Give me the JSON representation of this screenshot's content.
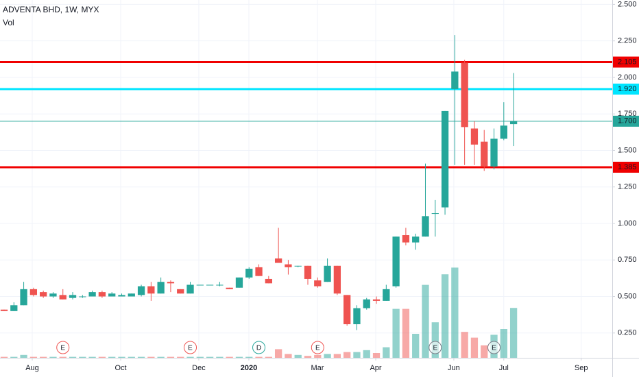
{
  "chart_data": {
    "type": "candlestick",
    "title": "ADVENTA BHD, 1W, MYX",
    "subtitle": "Vol",
    "up_color": "#26a69a",
    "down_color": "#ef5350",
    "open": [
      0.41,
      0.4,
      0.44,
      0.55,
      0.53,
      0.5,
      0.51,
      0.49,
      0.5,
      0.5,
      0.53,
      0.5,
      0.5,
      0.5,
      0.51,
      0.57,
      0.52,
      0.6,
      0.55,
      0.52,
      0.58,
      0.58,
      0.58,
      0.56,
      0.56,
      0.63,
      0.7,
      0.62,
      0.76,
      0.72,
      0.71,
      0.71,
      0.61,
      0.6,
      0.71,
      0.51,
      0.31,
      0.42,
      0.48,
      0.47,
      0.57,
      0.92,
      0.87,
      0.91,
      1.07,
      1.11,
      1.92,
      2.1,
      1.65,
      1.56,
      1.39,
      1.58,
      1.68
    ],
    "high": [
      0.41,
      0.46,
      0.6,
      0.56,
      0.54,
      0.53,
      0.55,
      0.53,
      0.51,
      0.54,
      0.54,
      0.53,
      0.52,
      0.52,
      0.58,
      0.6,
      0.63,
      0.61,
      0.55,
      0.6,
      0.58,
      0.58,
      0.6,
      0.56,
      0.63,
      0.7,
      0.72,
      0.64,
      0.97,
      0.75,
      0.71,
      0.71,
      0.63,
      0.76,
      0.71,
      0.51,
      0.44,
      0.49,
      0.5,
      0.58,
      0.91,
      0.97,
      0.93,
      1.41,
      1.16,
      1.77,
      2.29,
      2.12,
      1.7,
      1.64,
      1.65,
      1.83,
      2.03
    ],
    "low": [
      0.4,
      0.4,
      0.44,
      0.5,
      0.49,
      0.49,
      0.48,
      0.48,
      0.49,
      0.5,
      0.49,
      0.5,
      0.5,
      0.5,
      0.5,
      0.47,
      0.52,
      0.53,
      0.52,
      0.52,
      0.58,
      0.58,
      0.57,
      0.55,
      0.56,
      0.62,
      0.64,
      0.59,
      0.73,
      0.65,
      0.7,
      0.58,
      0.56,
      0.6,
      0.51,
      0.3,
      0.27,
      0.41,
      0.45,
      0.47,
      0.56,
      0.85,
      0.82,
      0.91,
      0.91,
      1.06,
      1.4,
      1.4,
      1.4,
      1.36,
      1.37,
      1.57,
      1.53
    ],
    "close": [
      0.4,
      0.44,
      0.55,
      0.51,
      0.5,
      0.52,
      0.48,
      0.51,
      0.5,
      0.53,
      0.5,
      0.52,
      0.51,
      0.52,
      0.57,
      0.52,
      0.6,
      0.59,
      0.52,
      0.58,
      0.58,
      0.58,
      0.58,
      0.55,
      0.63,
      0.69,
      0.64,
      0.59,
      0.73,
      0.7,
      0.71,
      0.62,
      0.57,
      0.71,
      0.52,
      0.31,
      0.42,
      0.48,
      0.47,
      0.55,
      0.91,
      0.87,
      0.91,
      1.05,
      1.07,
      1.77,
      2.04,
      1.66,
      1.54,
      1.39,
      1.58,
      1.67,
      1.7
    ],
    "volume": [
      1,
      1,
      3,
      1,
      1,
      1,
      1,
      1,
      1,
      1,
      1,
      1,
      1,
      1,
      1,
      1,
      1,
      1,
      1,
      1,
      1,
      1,
      1,
      1,
      1,
      1,
      1,
      1,
      9,
      4,
      3,
      2,
      3,
      4,
      4,
      6,
      6,
      8,
      5,
      11,
      51,
      51,
      25,
      76,
      37,
      87,
      94,
      27,
      21,
      13,
      24,
      30,
      52
    ],
    "volume_lim": [
      0,
      100
    ],
    "xlim": [
      -0.42,
      62.07
    ],
    "xticks": [
      {
        "value": 2.87,
        "label": "Aug"
      },
      {
        "value": 11.9,
        "label": "Oct"
      },
      {
        "value": 19.87,
        "label": "Dec"
      },
      {
        "value": 24.98,
        "label": "2020"
      },
      {
        "value": 31.98,
        "label": "Mar"
      },
      {
        "value": 37.93,
        "label": "Apr"
      },
      {
        "value": 45.9,
        "label": "Jun"
      },
      {
        "value": 51.0,
        "label": "Jul"
      },
      {
        "value": 58.9,
        "label": "Sep"
      }
    ],
    "ylim": [
      0.08,
      2.53
    ],
    "yticks": [
      {
        "value": 0.25,
        "label": "0.250"
      },
      {
        "value": 0.5,
        "label": "0.500"
      },
      {
        "value": 0.75,
        "label": "0.750"
      },
      {
        "value": 1.0,
        "label": "1.000"
      },
      {
        "value": 1.25,
        "label": "1.250"
      },
      {
        "value": 1.5,
        "label": "1.500"
      },
      {
        "value": 1.75,
        "label": "1.750"
      },
      {
        "value": 2.0,
        "label": "2.000"
      },
      {
        "value": 2.25,
        "label": "2.250"
      },
      {
        "value": 2.5,
        "label": "2.500"
      }
    ],
    "grid": true,
    "levels": [
      {
        "value": 2.105,
        "label": "2.105",
        "color": "#f00000",
        "width": 3,
        "text_color": "#ffffff"
      },
      {
        "value": 1.92,
        "label": "1.920",
        "color": "#00e5ff",
        "width": 3,
        "text_color": "#131722"
      },
      {
        "value": 1.7,
        "label": "1.700",
        "color": "#26a69a",
        "width": 1,
        "text_color": "#ffffff"
      },
      {
        "value": 1.385,
        "label": "1.385",
        "color": "#f00000",
        "width": 3,
        "text_color": "#ffffff"
      }
    ],
    "events": [
      {
        "label": "E",
        "candle": 6,
        "color": "#ef5350"
      },
      {
        "label": "E",
        "candle": 19,
        "color": "#ef5350"
      },
      {
        "label": "D",
        "candle": 26,
        "color": "#26a69a"
      },
      {
        "label": "E",
        "candle": 32,
        "color": "#ef5350"
      },
      {
        "label": "E",
        "candle": 44,
        "color": "#787b86"
      },
      {
        "label": "E",
        "candle": 50,
        "color": "#787b86"
      }
    ]
  }
}
